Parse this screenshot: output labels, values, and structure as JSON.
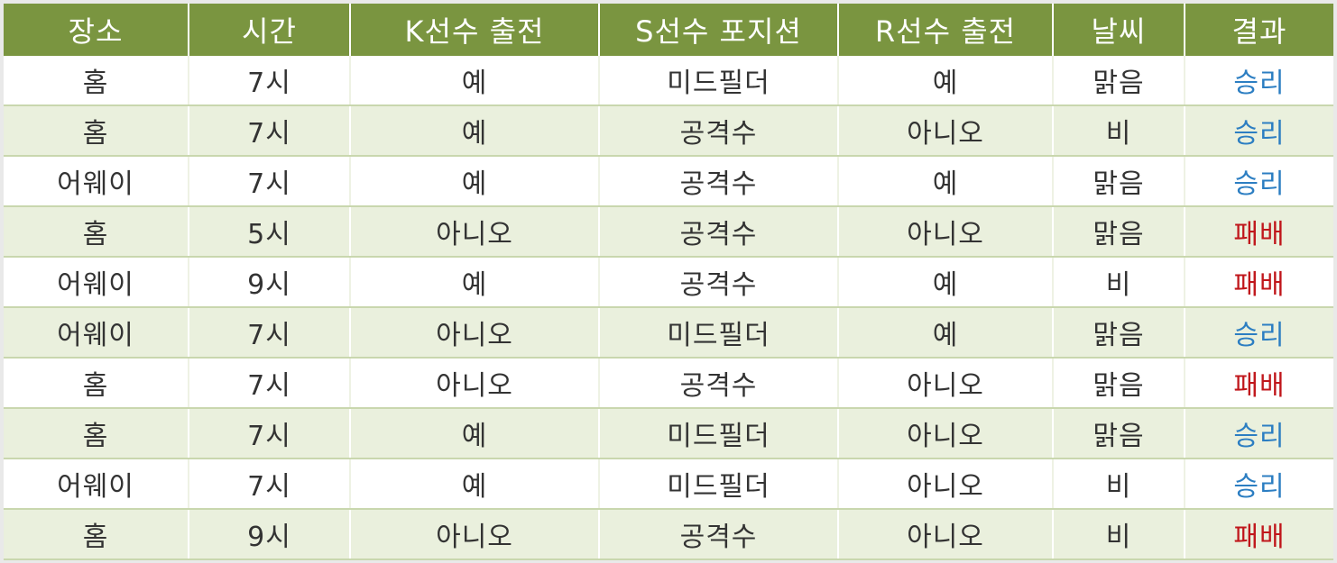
{
  "columns": [
    "장소",
    "시간",
    "K선수 출전",
    "S선수 포지션",
    "R선수 출전",
    "날씨",
    "결과"
  ],
  "colors": {
    "header_bg": "#7a9540",
    "row_alt_bg": "#eaf0dd",
    "win": "#2c7ec2",
    "loss": "#c0161b"
  },
  "rows": [
    {
      "place": "홈",
      "time": "7시",
      "k": "예",
      "s": "미드필더",
      "r": "예",
      "weather": "맑음",
      "result": "승리",
      "outcome": "win"
    },
    {
      "place": "홈",
      "time": "7시",
      "k": "예",
      "s": "공격수",
      "r": "아니오",
      "weather": "비",
      "result": "승리",
      "outcome": "win"
    },
    {
      "place": "어웨이",
      "time": "7시",
      "k": "예",
      "s": "공격수",
      "r": "예",
      "weather": "맑음",
      "result": "승리",
      "outcome": "win"
    },
    {
      "place": "홈",
      "time": "5시",
      "k": "아니오",
      "s": "공격수",
      "r": "아니오",
      "weather": "맑음",
      "result": "패배",
      "outcome": "loss"
    },
    {
      "place": "어웨이",
      "time": "9시",
      "k": "예",
      "s": "공격수",
      "r": "예",
      "weather": "비",
      "result": "패배",
      "outcome": "loss"
    },
    {
      "place": "어웨이",
      "time": "7시",
      "k": "아니오",
      "s": "미드필더",
      "r": "예",
      "weather": "맑음",
      "result": "승리",
      "outcome": "win"
    },
    {
      "place": "홈",
      "time": "7시",
      "k": "아니오",
      "s": "공격수",
      "r": "아니오",
      "weather": "맑음",
      "result": "패배",
      "outcome": "loss"
    },
    {
      "place": "홈",
      "time": "7시",
      "k": "예",
      "s": "미드필더",
      "r": "아니오",
      "weather": "맑음",
      "result": "승리",
      "outcome": "win"
    },
    {
      "place": "어웨이",
      "time": "7시",
      "k": "예",
      "s": "미드필더",
      "r": "아니오",
      "weather": "비",
      "result": "승리",
      "outcome": "win"
    },
    {
      "place": "홈",
      "time": "9시",
      "k": "아니오",
      "s": "공격수",
      "r": "아니오",
      "weather": "비",
      "result": "패배",
      "outcome": "loss"
    }
  ]
}
